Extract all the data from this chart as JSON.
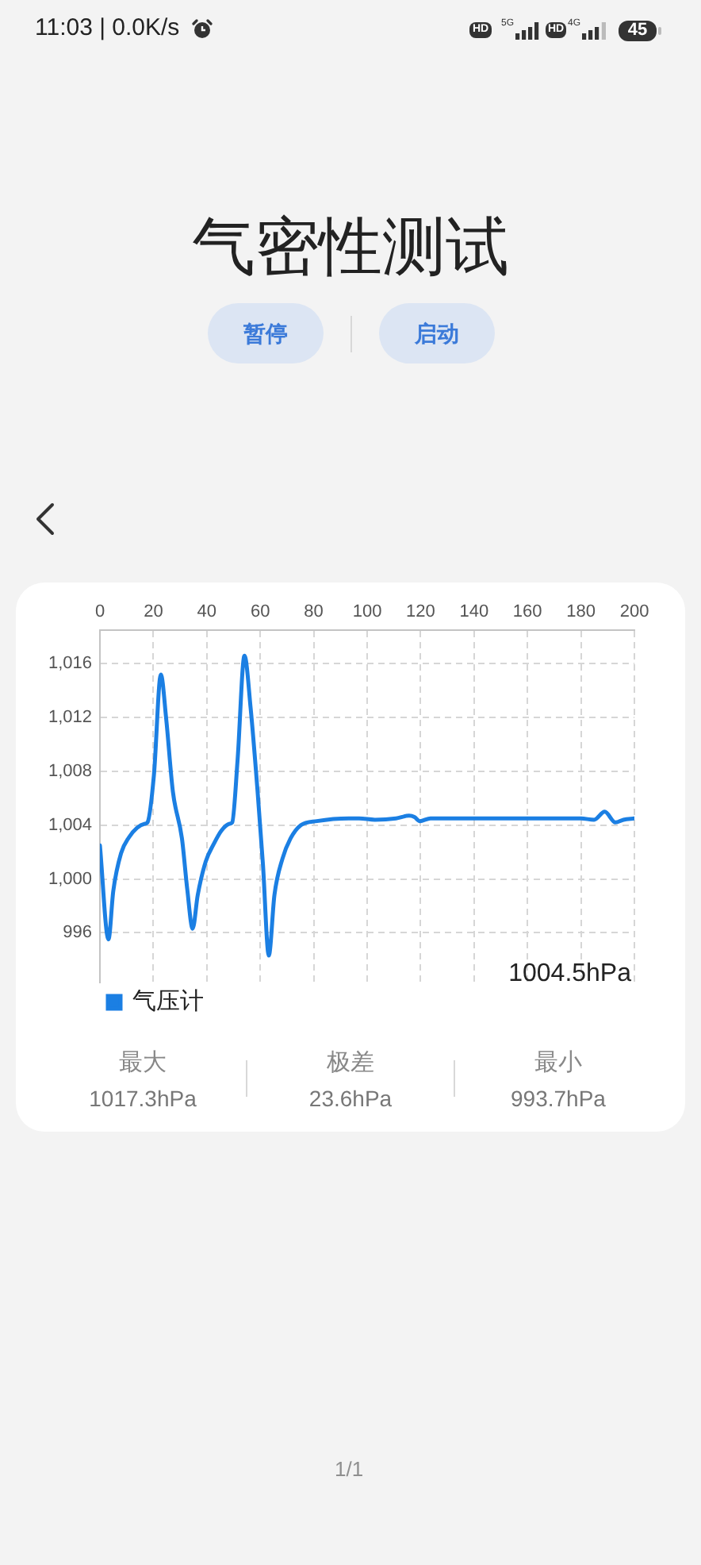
{
  "chart_data": {
    "type": "line",
    "title": "气密性测试",
    "x": [
      0,
      3.2,
      5,
      7.9,
      10.9,
      13.9,
      16.8,
      17.8,
      20.2,
      22.8,
      24.8,
      27.3,
      30.7,
      32.7,
      34.7,
      36.6,
      39.6,
      42.6,
      45.5,
      48.5,
      49.5,
      51.5,
      54.1,
      56.4,
      59,
      61,
      63.2,
      65.3,
      68.3,
      71.3,
      75.2,
      81.2,
      93.1,
      97,
      102.9,
      110.8,
      115.7,
      117.7,
      119.7,
      123.7,
      140.5,
      160.3,
      180,
      184.9,
      188.9,
      192.9,
      195.9,
      200
    ],
    "series": [
      {
        "name": "气压计",
        "color": "#1b7fe3",
        "values": [
          1002.5,
          995.5,
          999.1,
          1001.9,
          1003.1,
          1003.8,
          1004.1,
          1004.2,
          1007.7,
          1015.2,
          1011.9,
          1006.5,
          1003,
          999.2,
          996.3,
          998.8,
          1001.3,
          1002.6,
          1003.6,
          1004.1,
          1004.2,
          1008.8,
          1016.6,
          1012.7,
          1006.5,
          1001.1,
          994.3,
          998.8,
          1001.5,
          1003,
          1004,
          1004.3,
          1004.5,
          1004.5,
          1004.4,
          1004.5,
          1004.7,
          1004.6,
          1004.3,
          1004.5,
          1004.5,
          1004.5,
          1004.5,
          1004.4,
          1005,
          1004.2,
          1004.4,
          1004.5
        ]
      }
    ],
    "xlim": [
      0,
      200
    ],
    "xticks": [
      0,
      20,
      40,
      60,
      80,
      100,
      120,
      140,
      160,
      180,
      200
    ],
    "ylim": [
      992.3,
      1018.5
    ],
    "yticks": [
      996,
      {
        "value": 1000,
        "label": "1,000"
      },
      {
        "value": 1004,
        "label": "1,004"
      },
      {
        "value": 1008,
        "label": "1,008"
      },
      {
        "value": 1012,
        "label": "1,012"
      },
      {
        "value": 1016,
        "label": "1,016"
      }
    ],
    "grid": true,
    "legend": "bottom left",
    "marker": "none",
    "line_style": "solid",
    "annotations": [
      "11:03 | 0.0K/s",
      "HD",
      "5G",
      "HD",
      "4G",
      "45",
      "暂停",
      "启动",
      "1004.5hPa",
      "最大",
      "1017.3hPa",
      "极差",
      "23.6hPa",
      "最小",
      "993.7hPa",
      "1/1"
    ]
  }
}
